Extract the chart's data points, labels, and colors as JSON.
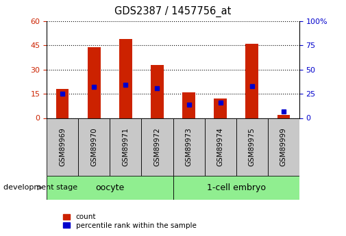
{
  "title": "GDS2387 / 1457756_at",
  "samples": [
    "GSM89969",
    "GSM89970",
    "GSM89971",
    "GSM89972",
    "GSM89973",
    "GSM89974",
    "GSM89975",
    "GSM89999"
  ],
  "counts": [
    18,
    44,
    49,
    33,
    16,
    12,
    46,
    2
  ],
  "percentile_ranks": [
    25,
    32,
    34,
    31,
    14,
    16,
    33,
    7
  ],
  "group_labels": [
    "oocyte",
    "1-cell embryo"
  ],
  "group_ranges": [
    [
      0,
      4
    ],
    [
      4,
      8
    ]
  ],
  "group_color": "#90EE90",
  "bar_color": "#CC2200",
  "dot_color": "#0000CC",
  "ylim_left": [
    0,
    60
  ],
  "ylim_right": [
    0,
    100
  ],
  "yticks_left": [
    0,
    15,
    30,
    45,
    60
  ],
  "yticks_right": [
    0,
    25,
    50,
    75,
    100
  ],
  "ylabel_left_color": "#CC2200",
  "ylabel_right_color": "#0000CC",
  "legend_count_label": "count",
  "legend_percentile_label": "percentile rank within the sample",
  "stage_label": "development stage",
  "xlabel_bg": "#C8C8C8",
  "bar_width": 0.4,
  "dot_size": 5
}
